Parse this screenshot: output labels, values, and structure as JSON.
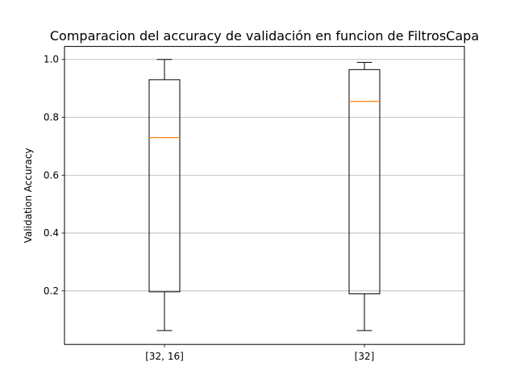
{
  "chart_data": {
    "type": "boxplot",
    "title": "Comparacion del accuracy de validación en funcion de FiltrosCapa",
    "xlabel": "",
    "ylabel": "Validation Accuracy",
    "ylim": [
      0.015,
      1.045
    ],
    "yticks": [
      0.2,
      0.4,
      0.6,
      0.8,
      1.0
    ],
    "ytick_labels": [
      "0.2",
      "0.4",
      "0.6",
      "0.8",
      "1.0"
    ],
    "grid": "y",
    "categories": [
      "[32, 16]",
      "[32]"
    ],
    "boxes": [
      {
        "label": "[32, 16]",
        "whisker_low": 0.063,
        "q1": 0.197,
        "median": 0.73,
        "q3": 0.93,
        "whisker_high": 1.0
      },
      {
        "label": "[32]",
        "whisker_low": 0.063,
        "q1": 0.19,
        "median": 0.855,
        "q3": 0.965,
        "whisker_high": 0.99
      }
    ],
    "colors": {
      "box": "#000000",
      "median": "#ff7f0e",
      "grid": "#b0b0b0"
    }
  }
}
